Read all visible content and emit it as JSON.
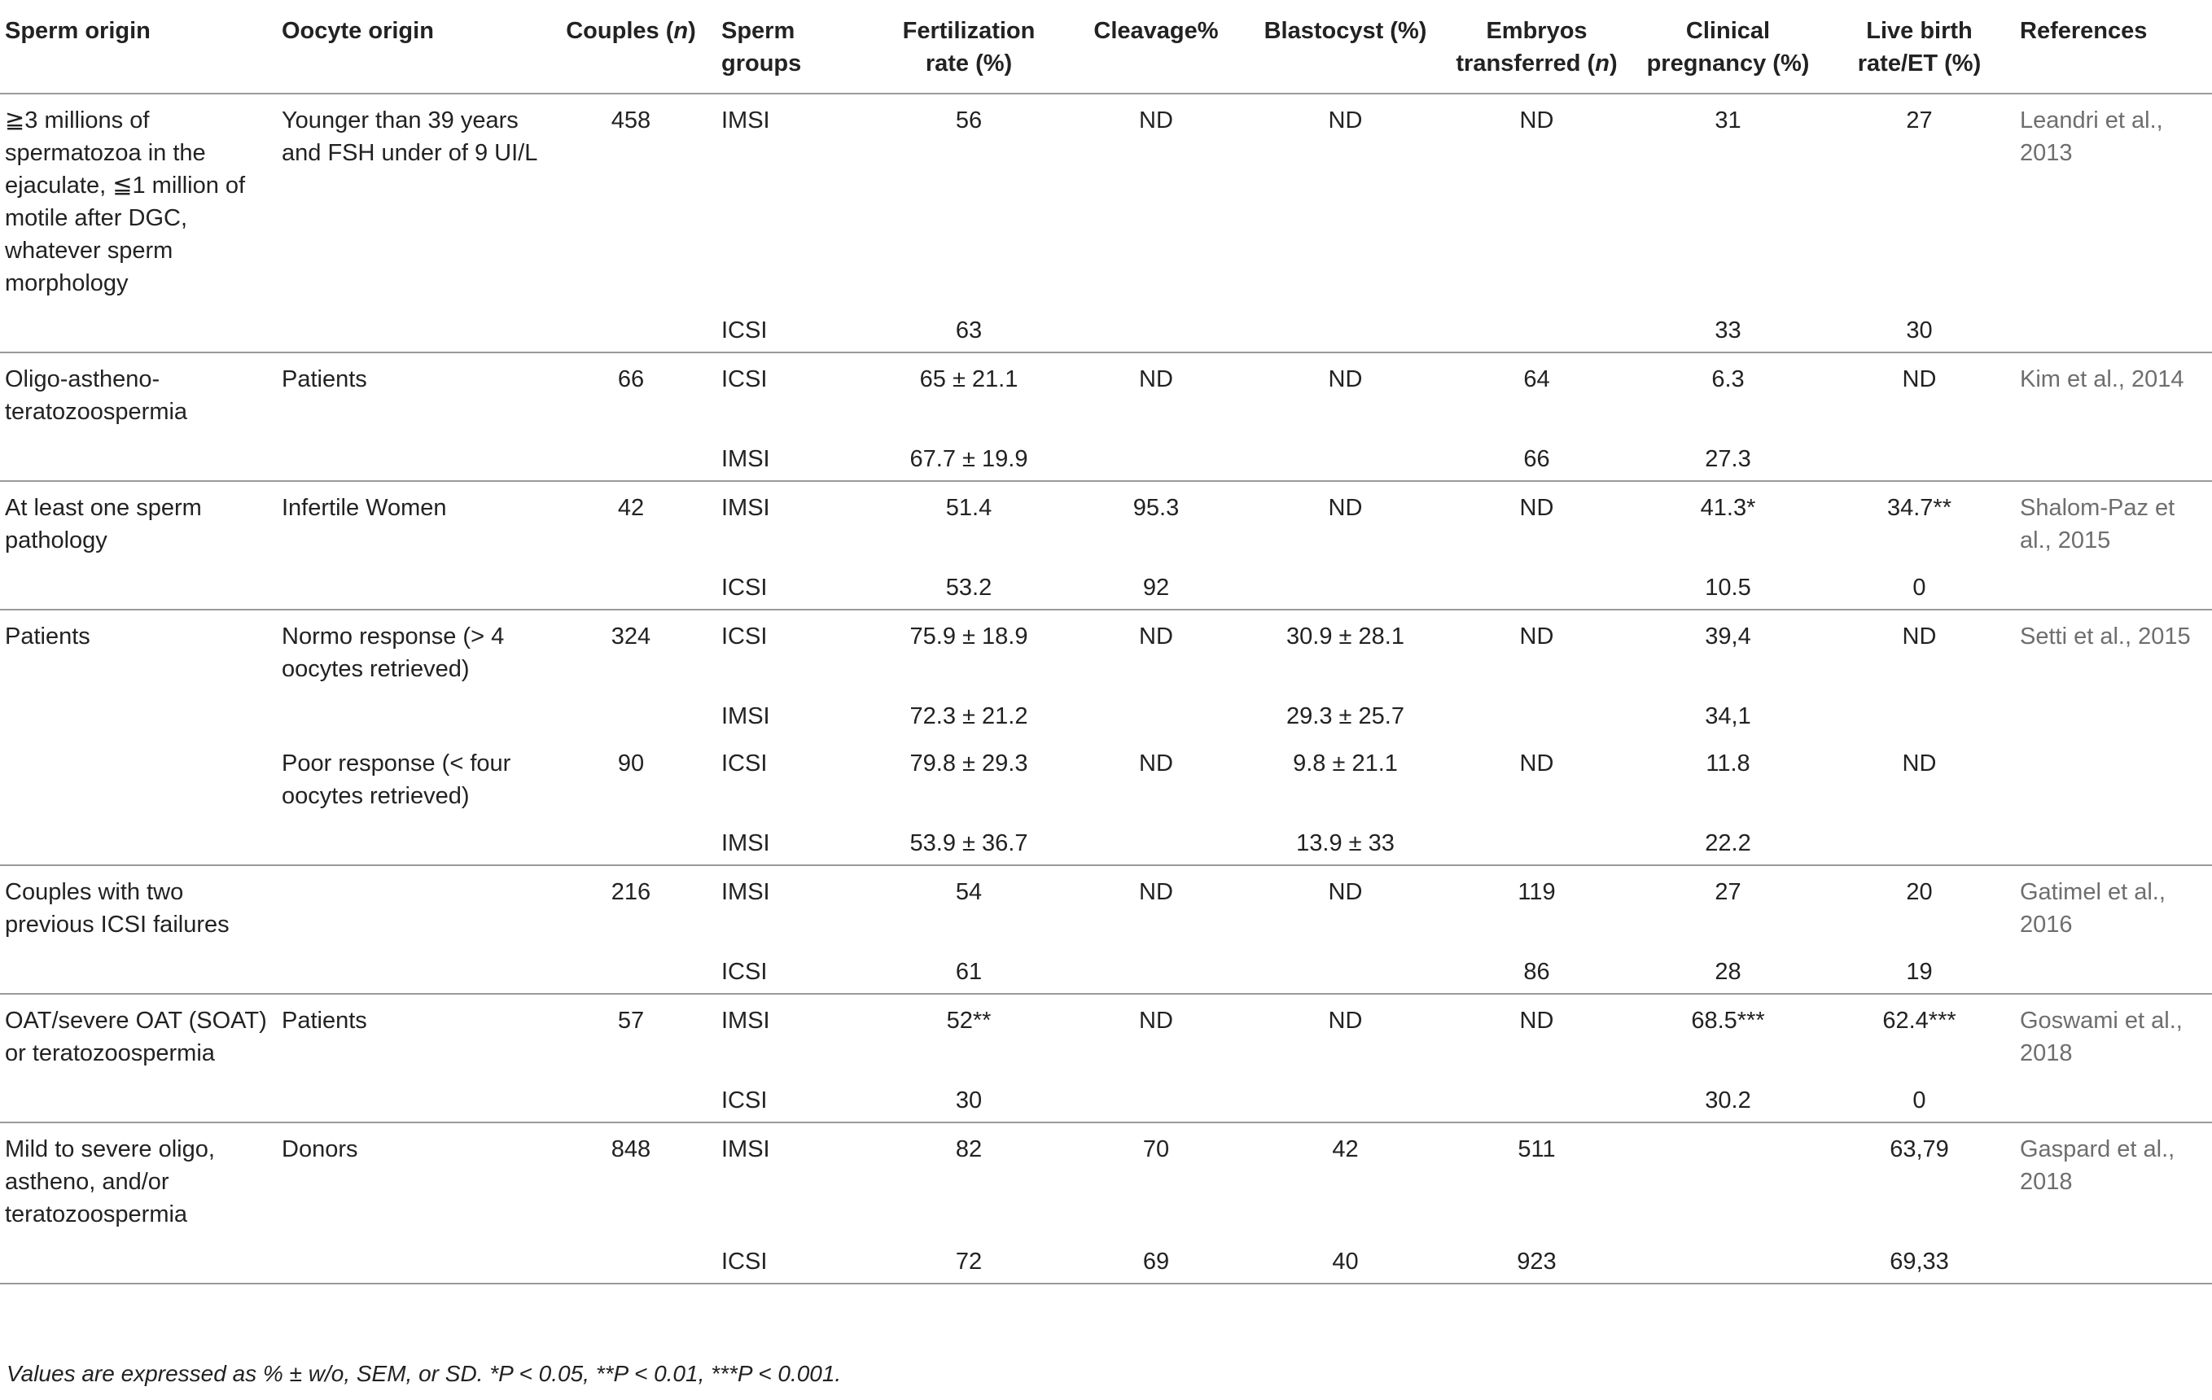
{
  "headers": {
    "sperm_origin": "Sperm origin",
    "oocyte_origin": "Oocyte origin",
    "couples_pre": "Couples (",
    "couples_n": "n",
    "couples_post": ")",
    "sperm_groups": "Sperm groups",
    "fertilization": "Fertilization rate (%)",
    "cleavage": "Cleavage%",
    "blastocyst": "Blastocyst (%)",
    "embryos_pre": "Embryos transferred (",
    "embryos_n": "n",
    "embryos_post": ")",
    "clinical": "Clinical pregnancy (%)",
    "live_birth": "Live birth rate/ET (%)",
    "references": "References"
  },
  "groups": [
    {
      "rows": [
        {
          "sperm": "≧3 millions of spermatozoa in the ejaculate, ≦1 million of motile after DGC, whatever sperm morphology",
          "oocyte": "Younger than 39 years and FSH under of 9 UI/L",
          "couples": "458",
          "group": "IMSI",
          "fert": "56",
          "cleav": "ND",
          "blast": "ND",
          "emb": "ND",
          "clin": "31",
          "live": "27",
          "ref": "Leandri et al., 2013"
        },
        {
          "sperm": "",
          "oocyte": "",
          "couples": "",
          "group": "ICSI",
          "fert": "63",
          "cleav": "",
          "blast": "",
          "emb": "",
          "clin": "33",
          "live": "30",
          "ref": ""
        }
      ]
    },
    {
      "rows": [
        {
          "sperm": "Oligo-astheno-teratozoospermia",
          "oocyte": "Patients",
          "couples": "66",
          "group": "ICSI",
          "fert": "65 ± 21.1",
          "cleav": "ND",
          "blast": "ND",
          "emb": "64",
          "clin": "6.3",
          "live": "ND",
          "ref": "Kim et al., 2014"
        },
        {
          "sperm": "",
          "oocyte": "",
          "couples": "",
          "group": "IMSI",
          "fert": "67.7 ± 19.9",
          "cleav": "",
          "blast": "",
          "emb": "66",
          "clin": "27.3",
          "live": "",
          "ref": ""
        }
      ]
    },
    {
      "rows": [
        {
          "sperm": "At least one sperm pathology",
          "oocyte": "Infertile Women",
          "couples": "42",
          "group": "IMSI",
          "fert": "51.4",
          "cleav": "95.3",
          "blast": "ND",
          "emb": "ND",
          "clin": "41.3*",
          "live": "34.7**",
          "ref": "Shalom-Paz et al., 2015"
        },
        {
          "sperm": "",
          "oocyte": "",
          "couples": "",
          "group": "ICSI",
          "fert": "53.2",
          "cleav": "92",
          "blast": "",
          "emb": "",
          "clin": "10.5",
          "live": "0",
          "ref": ""
        }
      ]
    },
    {
      "rows": [
        {
          "sperm": "Patients",
          "oocyte": "Normo response (> 4 oocytes retrieved)",
          "couples": "324",
          "group": "ICSI",
          "fert": "75.9 ± 18.9",
          "cleav": "ND",
          "blast": "30.9 ± 28.1",
          "emb": "ND",
          "clin": "39,4",
          "live": "ND",
          "ref": "Setti et al., 2015"
        },
        {
          "sperm": "",
          "oocyte": "",
          "couples": "",
          "group": "IMSI",
          "fert": "72.3 ± 21.2",
          "cleav": "",
          "blast": "29.3 ± 25.7",
          "emb": "",
          "clin": "34,1",
          "live": "",
          "ref": ""
        },
        {
          "sperm": "",
          "oocyte": "Poor response (< four oocytes retrieved)",
          "couples": "90",
          "group": "ICSI",
          "fert": "79.8 ± 29.3",
          "cleav": "ND",
          "blast": "9.8 ± 21.1",
          "emb": "ND",
          "clin": "11.8",
          "live": "ND",
          "ref": ""
        },
        {
          "sperm": "",
          "oocyte": "",
          "couples": "",
          "group": "IMSI",
          "fert": "53.9 ± 36.7",
          "cleav": "",
          "blast": "13.9 ± 33",
          "emb": "",
          "clin": "22.2",
          "live": "",
          "ref": ""
        }
      ]
    },
    {
      "rows": [
        {
          "sperm": "Couples with two previous ICSI failures",
          "oocyte": "",
          "couples": "216",
          "group": "IMSI",
          "fert": "54",
          "cleav": "ND",
          "blast": "ND",
          "emb": "119",
          "clin": "27",
          "live": "20",
          "ref": "Gatimel et al., 2016"
        },
        {
          "sperm": "",
          "oocyte": "",
          "couples": "",
          "group": "ICSI",
          "fert": "61",
          "cleav": "",
          "blast": "",
          "emb": "86",
          "clin": "28",
          "live": "19",
          "ref": ""
        }
      ]
    },
    {
      "rows": [
        {
          "sperm": "OAT/severe OAT (SOAT) or teratozoospermia",
          "oocyte": "Patients",
          "couples": "57",
          "group": "IMSI",
          "fert": "52**",
          "cleav": "ND",
          "blast": "ND",
          "emb": "ND",
          "clin": "68.5***",
          "live": "62.4***",
          "ref": "Goswami et al., 2018"
        },
        {
          "sperm": "",
          "oocyte": "",
          "couples": "",
          "group": "ICSI",
          "fert": "30",
          "cleav": "",
          "blast": "",
          "emb": "",
          "clin": "30.2",
          "live": "0",
          "ref": ""
        }
      ]
    },
    {
      "rows": [
        {
          "sperm": "Mild to severe oligo, astheno, and/or teratozoospermia",
          "oocyte": "Donors",
          "couples": "848",
          "group": "IMSI",
          "fert": "82",
          "cleav": "70",
          "blast": "42",
          "emb": "511",
          "clin": "",
          "live": "63,79",
          "ref": "Gaspard et al., 2018"
        },
        {
          "sperm": "",
          "oocyte": "",
          "couples": "",
          "group": "ICSI",
          "fert": "72",
          "cleav": "69",
          "blast": "40",
          "emb": "923",
          "clin": "",
          "live": "69,33",
          "ref": ""
        }
      ]
    }
  ],
  "footnote": "Values are expressed as % ± w/o, SEM, or SD. *P < 0.05, **P < 0.01, ***P < 0.001."
}
